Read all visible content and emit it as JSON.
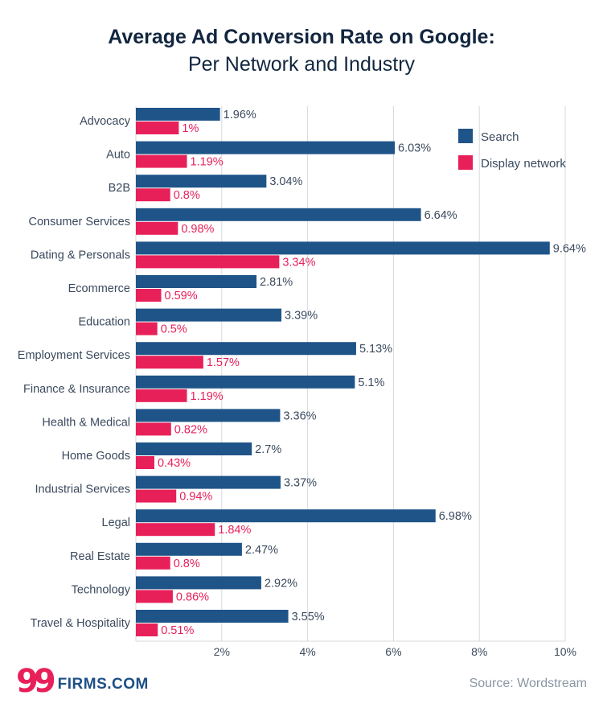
{
  "chart_data": {
    "type": "bar",
    "orientation": "horizontal",
    "title": "Average Ad Conversion Rate on Google:",
    "subtitle": "Per Network and Industry",
    "xlabel": "",
    "ylabel": "",
    "xlim": [
      0,
      10
    ],
    "x_ticks": [
      2,
      4,
      6,
      8,
      10
    ],
    "x_tick_labels": [
      "2%",
      "4%",
      "6%",
      "8%",
      "10%"
    ],
    "grid": true,
    "legend_position": "top-right",
    "categories": [
      "Advocacy",
      "Auto",
      "B2B",
      "Consumer Services",
      "Dating & Personals",
      "Ecommerce",
      "Education",
      "Employment Services",
      "Finance & Insurance",
      "Health & Medical",
      "Home Goods",
      "Industrial Services",
      "Legal",
      "Real Estate",
      "Technology",
      "Travel & Hospitality"
    ],
    "series": [
      {
        "name": "Search",
        "color": "#1f5488",
        "values": [
          1.96,
          6.03,
          3.04,
          6.64,
          9.64,
          2.81,
          3.39,
          5.13,
          5.1,
          3.36,
          2.7,
          3.37,
          6.98,
          2.47,
          2.92,
          3.55
        ],
        "labels": [
          "1.96%",
          "6.03%",
          "3.04%",
          "6.64%",
          "9.64%",
          "2.81%",
          "3.39%",
          "5.13%",
          "5.1%",
          "3.36%",
          "2.7%",
          "3.37%",
          "6.98%",
          "2.47%",
          "2.92%",
          "3.55%"
        ]
      },
      {
        "name": "Display network",
        "color": "#e8205a",
        "values": [
          1,
          1.19,
          0.8,
          0.98,
          3.34,
          0.59,
          0.5,
          1.57,
          1.19,
          0.82,
          0.43,
          0.94,
          1.84,
          0.8,
          0.86,
          0.51
        ],
        "labels": [
          "1%",
          "1.19%",
          "0.8%",
          "0.98%",
          "3.34%",
          "0.59%",
          "0.5%",
          "1.57%",
          "1.19%",
          "0.82%",
          "0.43%",
          "0.94%",
          "1.84%",
          "0.8%",
          "0.86%",
          "0.51%"
        ]
      }
    ]
  },
  "footer": {
    "logo_number": "99",
    "logo_text": "FIRMS.COM",
    "source": "Source: Wordstream"
  }
}
